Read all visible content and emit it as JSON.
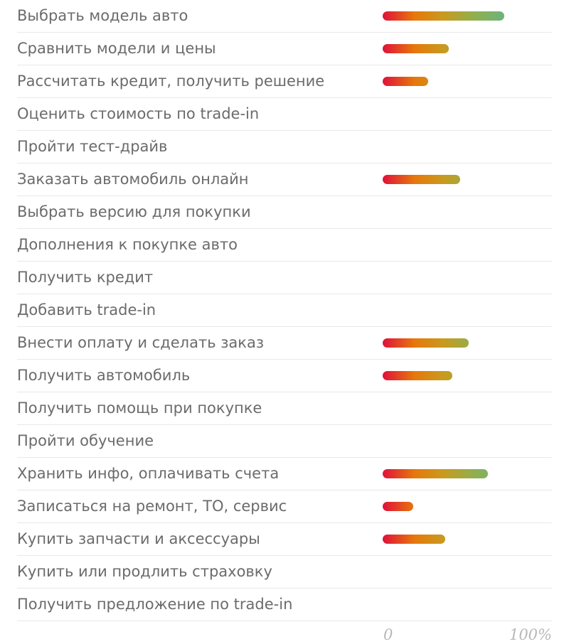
{
  "chart_data": {
    "type": "bar",
    "orientation": "horizontal",
    "categories": [
      "Выбрать модель авто",
      "Сравнить модели и цены",
      "Рассчитать кредит, получить решение",
      "Оценить стоимость по trade-in",
      "Пройти тест-драйв",
      "Заказать автомобиль онлайн",
      "Выбрать версию для покупки",
      "Дополнения к покупке авто",
      "Получить кредит",
      "Добавить trade-in",
      "Внести оплату и сделать заказ",
      "Получить автомобиль",
      "Получить помощь при покупке",
      "Пройти обучение",
      "Хранить инфо, оплачивать счета",
      "Записаться на ремонт, ТО, сервис",
      "Купить запчасти и аксессуары",
      "Купить или продлить страховку",
      "Получить предложение по trade-in"
    ],
    "values": [
      72,
      39,
      27,
      0,
      0,
      46,
      0,
      0,
      0,
      0,
      51,
      41,
      0,
      0,
      62,
      18,
      37,
      0,
      0
    ],
    "xlim": [
      0,
      100
    ],
    "x_ticks": [
      "0",
      "100%"
    ],
    "grid": false,
    "legend": false
  },
  "colors": {
    "gradient_start": "#e0103c",
    "gradient_mid": "#e6780a",
    "gradient_end": "#6db37a",
    "label_text": "#6b6b6b",
    "tick_text": "#b8b8b8",
    "divider": "#e8e8e8"
  }
}
